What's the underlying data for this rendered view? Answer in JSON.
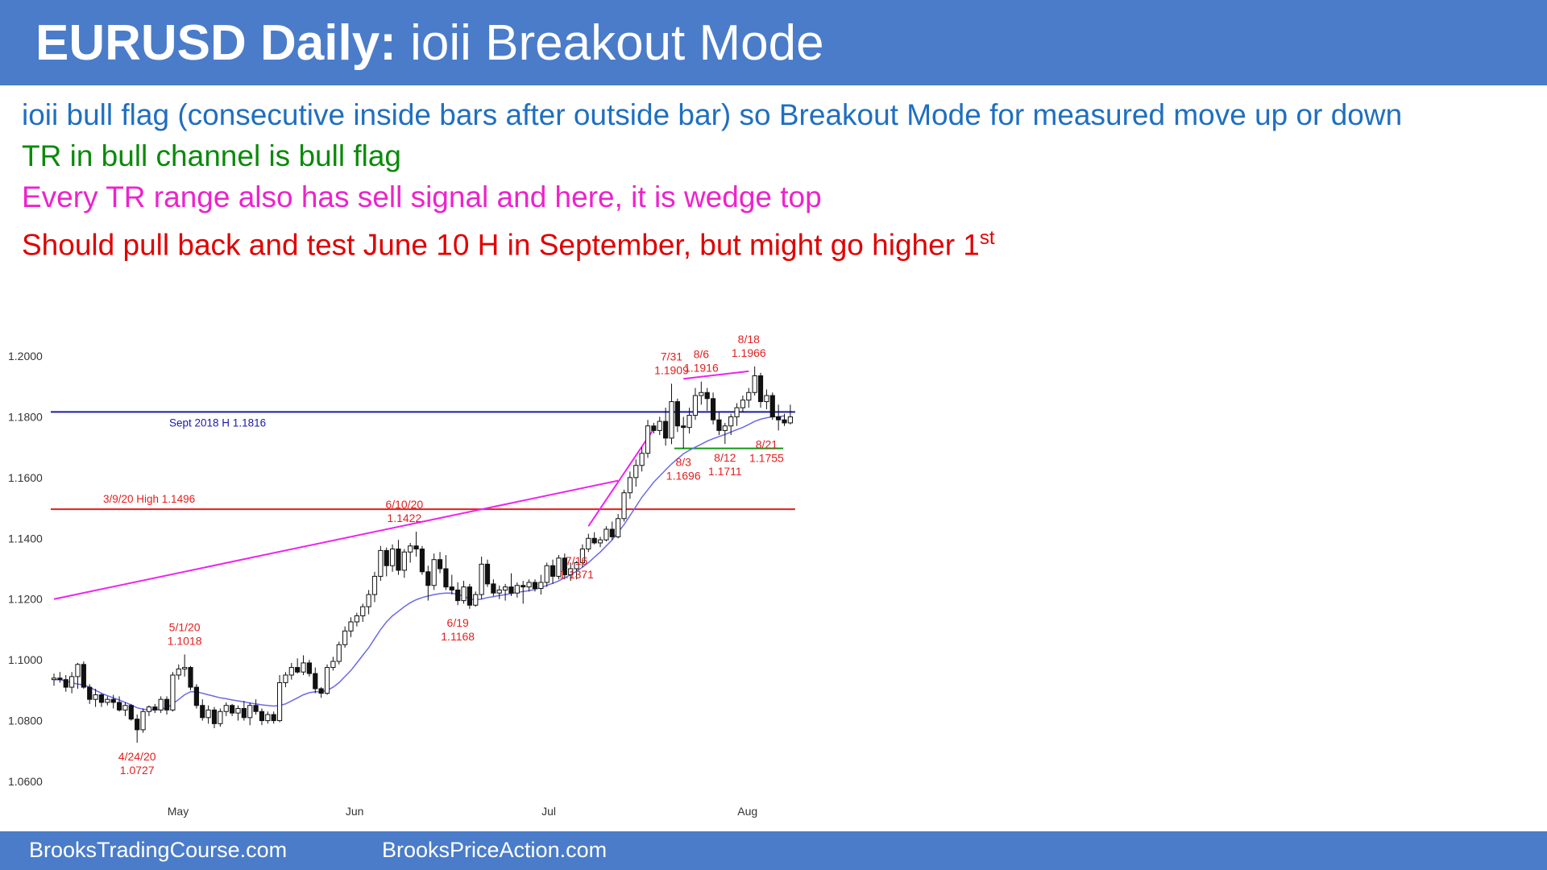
{
  "header": {
    "title_bold": "EURUSD Daily:",
    "title_rest": " ioii Breakout Mode"
  },
  "notes": [
    "ioii bull flag (consecutive inside bars after outside bar) so Breakout Mode for measured move up or down",
    "TR in bull channel is bull flag",
    "Every TR range also has sell signal and here, it is wedge top",
    "Should pull back and test June 10 H in September, but might go higher 1"
  ],
  "notes_sup": "st",
  "colors": {
    "header_bg": "#4a7cc9",
    "note_blue": "#1f6fc0",
    "note_green": "#0a8a0a",
    "note_magenta": "#ee22cc",
    "note_red": "#e00000",
    "ma": "#6a6ae8",
    "level_blue": "#1a1aa8",
    "level_red": "#e51c1c",
    "level_green": "#119911",
    "trendline": "#ee22ee"
  },
  "footer": {
    "left": "BrooksTradingCourse.com",
    "right": "BrooksPriceAction.com"
  },
  "chart_data": {
    "type": "candlestick",
    "ylim": [
      1.06,
      1.2
    ],
    "yticks": [
      "1.2000",
      "1.1800",
      "1.1600",
      "1.1400",
      "1.1200",
      "1.1000",
      "1.0800",
      "1.0600"
    ],
    "xticks": [
      {
        "label": "May",
        "index": 21
      },
      {
        "label": "Jun",
        "index": 51
      },
      {
        "label": "Jul",
        "index": 84
      },
      {
        "label": "Aug",
        "index": 117
      }
    ],
    "ohlc": [
      [
        1.0935,
        1.0955,
        1.0915,
        1.094
      ],
      [
        1.094,
        1.096,
        1.0925,
        1.0935
      ],
      [
        1.0935,
        1.095,
        1.0895,
        1.091
      ],
      [
        1.091,
        1.096,
        1.089,
        1.0945
      ],
      [
        1.0945,
        1.099,
        1.0905,
        1.0985
      ],
      [
        1.0985,
        1.0995,
        1.0905,
        1.091
      ],
      [
        1.091,
        1.092,
        1.0855,
        1.087
      ],
      [
        1.087,
        1.0905,
        1.0845,
        1.0885
      ],
      [
        1.0885,
        1.089,
        1.0845,
        1.086
      ],
      [
        1.086,
        1.088,
        1.085,
        1.087
      ],
      [
        1.087,
        1.0885,
        1.084,
        1.086
      ],
      [
        1.086,
        1.088,
        1.083,
        1.0835
      ],
      [
        1.0835,
        1.086,
        1.0815,
        1.085
      ],
      [
        1.085,
        1.0855,
        1.08,
        1.0805
      ],
      [
        1.0805,
        1.082,
        1.0727,
        1.077
      ],
      [
        1.077,
        1.084,
        1.076,
        1.083
      ],
      [
        1.083,
        1.085,
        1.0815,
        1.0845
      ],
      [
        1.0845,
        1.0855,
        1.0825,
        1.0835
      ],
      [
        1.0835,
        1.088,
        1.0825,
        1.087
      ],
      [
        1.087,
        1.088,
        1.082,
        1.0835
      ],
      [
        1.0835,
        1.096,
        1.083,
        1.095
      ],
      [
        1.095,
        1.0985,
        1.0935,
        1.097
      ],
      [
        1.097,
        1.1018,
        1.0945,
        1.0975
      ],
      [
        1.0975,
        1.098,
        1.09,
        1.091
      ],
      [
        1.091,
        1.092,
        1.084,
        1.085
      ],
      [
        1.085,
        1.087,
        1.08,
        1.081
      ],
      [
        1.081,
        1.085,
        1.079,
        1.0835
      ],
      [
        1.0835,
        1.0845,
        1.0775,
        1.079
      ],
      [
        1.079,
        1.084,
        1.078,
        1.083
      ],
      [
        1.083,
        1.086,
        1.0815,
        1.085
      ],
      [
        1.085,
        1.0855,
        1.0815,
        1.0825
      ],
      [
        1.0825,
        1.085,
        1.08,
        1.084
      ],
      [
        1.084,
        1.0865,
        1.08,
        1.081
      ],
      [
        1.081,
        1.086,
        1.0785,
        1.085
      ],
      [
        1.085,
        1.087,
        1.082,
        1.083
      ],
      [
        1.083,
        1.084,
        1.0785,
        1.08
      ],
      [
        1.08,
        1.083,
        1.079,
        1.082
      ],
      [
        1.082,
        1.083,
        1.079,
        1.08
      ],
      [
        1.08,
        1.095,
        1.0795,
        1.0925
      ],
      [
        1.0925,
        1.096,
        1.091,
        1.095
      ],
      [
        1.095,
        1.099,
        1.0935,
        1.0975
      ],
      [
        1.0975,
        1.1005,
        1.0955,
        1.096
      ],
      [
        1.096,
        1.1015,
        1.095,
        1.099
      ],
      [
        1.099,
        1.1,
        1.0945,
        1.0955
      ],
      [
        1.0955,
        1.0975,
        1.089,
        1.0905
      ],
      [
        1.0905,
        1.091,
        1.0875,
        1.089
      ],
      [
        1.089,
        1.0985,
        1.0885,
        1.0975
      ],
      [
        1.0975,
        1.101,
        1.0965,
        1.0995
      ],
      [
        1.0995,
        1.106,
        1.0985,
        1.105
      ],
      [
        1.105,
        1.111,
        1.104,
        1.1095
      ],
      [
        1.1095,
        1.114,
        1.1075,
        1.1125
      ],
      [
        1.1125,
        1.1155,
        1.111,
        1.1145
      ],
      [
        1.1145,
        1.1185,
        1.1125,
        1.1175
      ],
      [
        1.1175,
        1.123,
        1.115,
        1.1215
      ],
      [
        1.1215,
        1.129,
        1.119,
        1.1275
      ],
      [
        1.1275,
        1.1375,
        1.126,
        1.136
      ],
      [
        1.136,
        1.137,
        1.1275,
        1.131
      ],
      [
        1.131,
        1.138,
        1.129,
        1.1365
      ],
      [
        1.1365,
        1.1395,
        1.128,
        1.1295
      ],
      [
        1.1295,
        1.1365,
        1.127,
        1.1355
      ],
      [
        1.1355,
        1.1385,
        1.132,
        1.1375
      ],
      [
        1.1375,
        1.1422,
        1.134,
        1.1365
      ],
      [
        1.1365,
        1.1375,
        1.128,
        1.129
      ],
      [
        1.129,
        1.131,
        1.1195,
        1.1245
      ],
      [
        1.1245,
        1.135,
        1.123,
        1.133
      ],
      [
        1.133,
        1.1355,
        1.1285,
        1.13
      ],
      [
        1.13,
        1.1345,
        1.123,
        1.124
      ],
      [
        1.124,
        1.128,
        1.1215,
        1.123
      ],
      [
        1.123,
        1.1255,
        1.118,
        1.1195
      ],
      [
        1.1195,
        1.126,
        1.1185,
        1.124
      ],
      [
        1.124,
        1.125,
        1.1168,
        1.118
      ],
      [
        1.118,
        1.1225,
        1.1175,
        1.1215
      ],
      [
        1.1215,
        1.134,
        1.12,
        1.1315
      ],
      [
        1.1315,
        1.133,
        1.124,
        1.125
      ],
      [
        1.125,
        1.1265,
        1.121,
        1.122
      ],
      [
        1.122,
        1.1245,
        1.12,
        1.123
      ],
      [
        1.123,
        1.125,
        1.1195,
        1.124
      ],
      [
        1.124,
        1.1285,
        1.121,
        1.122
      ],
      [
        1.122,
        1.1255,
        1.1205,
        1.1245
      ],
      [
        1.1245,
        1.126,
        1.1185,
        1.124
      ],
      [
        1.124,
        1.1265,
        1.1225,
        1.1255
      ],
      [
        1.1255,
        1.1265,
        1.1225,
        1.1235
      ],
      [
        1.1235,
        1.128,
        1.1215,
        1.1255
      ],
      [
        1.1255,
        1.132,
        1.124,
        1.131
      ],
      [
        1.131,
        1.133,
        1.125,
        1.1275
      ],
      [
        1.1275,
        1.1345,
        1.1265,
        1.1335
      ],
      [
        1.1335,
        1.135,
        1.1265,
        1.128
      ],
      [
        1.128,
        1.132,
        1.126,
        1.13
      ],
      [
        1.13,
        1.1325,
        1.1265,
        1.132
      ],
      [
        1.132,
        1.138,
        1.1305,
        1.1365
      ],
      [
        1.1365,
        1.1415,
        1.1355,
        1.14
      ],
      [
        1.14,
        1.142,
        1.138,
        1.1385
      ],
      [
        1.1385,
        1.1405,
        1.1371,
        1.1395
      ],
      [
        1.1395,
        1.144,
        1.139,
        1.143
      ],
      [
        1.143,
        1.1455,
        1.1395,
        1.1405
      ],
      [
        1.1405,
        1.148,
        1.14,
        1.1465
      ],
      [
        1.1465,
        1.156,
        1.1455,
        1.155
      ],
      [
        1.155,
        1.162,
        1.153,
        1.16
      ],
      [
        1.16,
        1.166,
        1.157,
        1.164
      ],
      [
        1.164,
        1.17,
        1.162,
        1.168
      ],
      [
        1.168,
        1.179,
        1.1665,
        1.177
      ],
      [
        1.177,
        1.178,
        1.1745,
        1.1755
      ],
      [
        1.1755,
        1.18,
        1.174,
        1.1785
      ],
      [
        1.1785,
        1.183,
        1.1705,
        1.173
      ],
      [
        1.173,
        1.1909,
        1.171,
        1.185
      ],
      [
        1.185,
        1.186,
        1.175,
        1.177
      ],
      [
        1.177,
        1.18,
        1.1696,
        1.1765
      ],
      [
        1.1765,
        1.183,
        1.1745,
        1.1805
      ],
      [
        1.1805,
        1.1895,
        1.179,
        1.187
      ],
      [
        1.187,
        1.1916,
        1.184,
        1.188
      ],
      [
        1.188,
        1.1895,
        1.182,
        1.186
      ],
      [
        1.186,
        1.188,
        1.1775,
        1.179
      ],
      [
        1.179,
        1.1815,
        1.174,
        1.1755
      ],
      [
        1.1755,
        1.178,
        1.1711,
        1.177
      ],
      [
        1.177,
        1.181,
        1.174,
        1.18
      ],
      [
        1.18,
        1.1845,
        1.177,
        1.183
      ],
      [
        1.183,
        1.187,
        1.1815,
        1.1855
      ],
      [
        1.1855,
        1.1895,
        1.183,
        1.188
      ],
      [
        1.188,
        1.1966,
        1.187,
        1.1935
      ],
      [
        1.1935,
        1.1945,
        1.183,
        1.185
      ],
      [
        1.185,
        1.189,
        1.1825,
        1.187
      ],
      [
        1.187,
        1.188,
        1.179,
        1.18
      ],
      [
        1.18,
        1.184,
        1.1755,
        1.179
      ],
      [
        1.179,
        1.181,
        1.177,
        1.178
      ],
      [
        1.178,
        1.184,
        1.1775,
        1.18
      ]
    ],
    "moving_average_20": [
      1.0935,
      1.0935,
      1.093,
      1.0925,
      1.092,
      1.0918,
      1.091,
      1.09,
      1.089,
      1.0882,
      1.0875,
      1.0868,
      1.086,
      1.0852,
      1.0842,
      1.0838,
      1.0835,
      1.0835,
      1.0838,
      1.0842,
      1.0855,
      1.087,
      1.0885,
      1.0895,
      1.0895,
      1.089,
      1.0885,
      1.088,
      1.0875,
      1.0872,
      1.0868,
      1.0865,
      1.0862,
      1.0858,
      1.0855,
      1.0852,
      1.085,
      1.0848,
      1.085,
      1.0855,
      1.0865,
      1.0875,
      1.0885,
      1.0892,
      1.0895,
      1.0895,
      1.09,
      1.091,
      1.0925,
      1.0945,
      1.0965,
      1.099,
      1.1015,
      1.104,
      1.107,
      1.11,
      1.1125,
      1.1145,
      1.116,
      1.1175,
      1.1188,
      1.1198,
      1.1205,
      1.121,
      1.1215,
      1.1218,
      1.122,
      1.122,
      1.1215,
      1.121,
      1.12,
      1.1198,
      1.12,
      1.1205,
      1.1208,
      1.1212,
      1.1215,
      1.1218,
      1.1222,
      1.1225,
      1.1228,
      1.1232,
      1.1238,
      1.1245,
      1.1252,
      1.126,
      1.127,
      1.128,
      1.1292,
      1.1305,
      1.132,
      1.1338,
      1.1355,
      1.1375,
      1.1395,
      1.142,
      1.1445,
      1.1475,
      1.1505,
      1.1535,
      1.156,
      1.1585,
      1.1605,
      1.1625,
      1.1645,
      1.1662,
      1.1678,
      1.169,
      1.17,
      1.171,
      1.172,
      1.1728,
      1.1735,
      1.1742,
      1.175,
      1.1758,
      1.1765,
      1.1775,
      1.1785,
      1.1792,
      1.1797,
      1.18,
      1.18,
      1.1803
    ],
    "levels": [
      {
        "label": "Sept 2018 H 1.1816",
        "value": 1.1816,
        "from_index": 0,
        "to_index": 124,
        "color": "level_blue"
      },
      {
        "label": "3/9/20 High 1.1496",
        "value": 1.1496,
        "from_index": 0,
        "to_index": 124,
        "color": "level_red"
      },
      {
        "label": "",
        "value": 1.1696,
        "from_index": 105,
        "to_index": 122,
        "color": "level_green"
      }
    ],
    "trendlines": [
      {
        "from": [
          0,
          1.12
        ],
        "to": [
          95,
          1.159
        ]
      },
      {
        "from": [
          90,
          1.144
        ],
        "to": [
          101,
          1.176
        ]
      },
      {
        "from": [
          106,
          1.1925
        ],
        "to": [
          117,
          1.195
        ]
      }
    ],
    "annotations": [
      {
        "lines": [
          "7/31",
          "1.1909"
        ],
        "index": 104,
        "value": 1.1909,
        "pos": "above"
      },
      {
        "lines": [
          "8/6",
          "1.1916"
        ],
        "index": 109,
        "value": 1.1916,
        "pos": "above"
      },
      {
        "lines": [
          "8/18",
          "1.1966"
        ],
        "index": 117,
        "value": 1.1966,
        "pos": "above"
      },
      {
        "lines": [
          "8/3",
          "1.1696"
        ],
        "index": 106,
        "value": 1.1696,
        "pos": "below"
      },
      {
        "lines": [
          "8/12",
          "1.1711"
        ],
        "index": 113,
        "value": 1.1711,
        "pos": "below"
      },
      {
        "lines": [
          "8/21",
          "1.1755"
        ],
        "index": 120,
        "value": 1.1755,
        "pos": "below"
      },
      {
        "lines": [
          "6/10/20",
          "1.1422"
        ],
        "index": 59,
        "value": 1.1422,
        "pos": "above"
      },
      {
        "lines": [
          "7/16",
          "1.1371"
        ],
        "index": 88,
        "value": 1.1371,
        "pos": "below"
      },
      {
        "lines": [
          "6/19",
          "1.1168"
        ],
        "index": 68,
        "value": 1.1168,
        "pos": "below"
      },
      {
        "lines": [
          "5/1/20",
          "1.1018"
        ],
        "index": 22,
        "value": 1.1018,
        "pos": "above"
      },
      {
        "lines": [
          "4/24/20",
          "1.0727"
        ],
        "index": 14,
        "value": 1.0727,
        "pos": "below"
      }
    ]
  }
}
